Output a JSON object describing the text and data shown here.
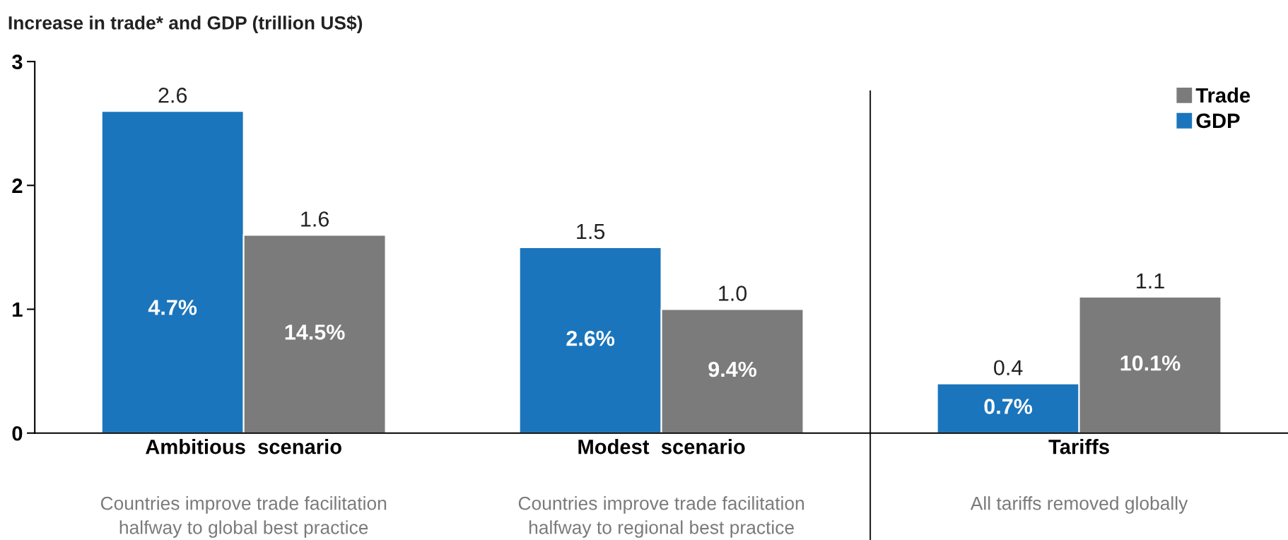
{
  "chart_data": {
    "type": "bar",
    "ylabel": "Increase in trade* and GDP (trillion US$)",
    "categories": [
      "Ambitious  scenario",
      "Modest  scenario",
      "Tariffs"
    ],
    "series": [
      {
        "name": "GDP",
        "color": "#1b75bc",
        "values": [
          2.6,
          1.5,
          0.4
        ],
        "value_labels": [
          "2.6",
          "1.5",
          "0.4"
        ]
      },
      {
        "name": "Trade",
        "color": "#7b7b7b",
        "values": [
          1.6,
          1.0,
          1.1
        ],
        "value_labels": [
          "1.6",
          "1.0",
          "1.1"
        ]
      }
    ],
    "ylim": [
      0,
      3
    ],
    "yticks": [
      0,
      1,
      2,
      3
    ],
    "grid": false,
    "legend": "top right",
    "annotations": [
      "Countries improve trade facilitation\nhalfway to global best practice",
      "Countries improve trade facilitation\nhalfway to regional best practice",
      "All tariffs removed globally",
      "4.7%",
      "2.6%",
      "0.7%",
      "14.5%",
      "9.4%",
      "10.1%"
    ]
  }
}
